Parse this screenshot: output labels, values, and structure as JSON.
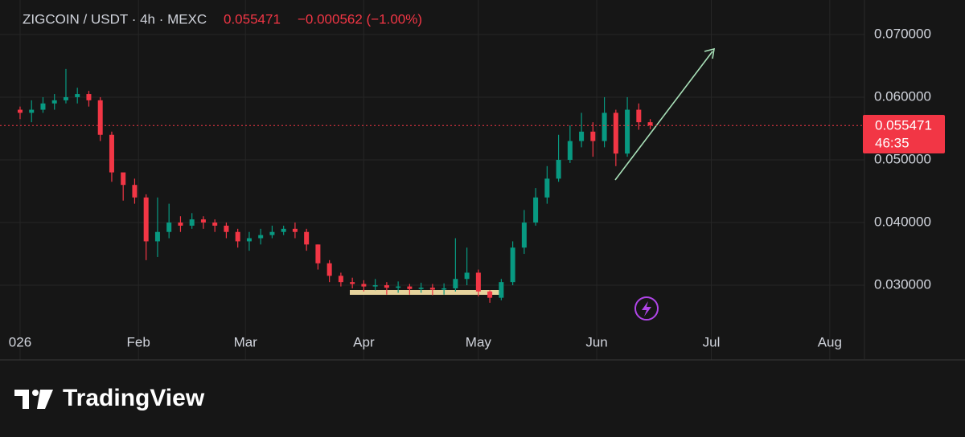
{
  "chart_data": {
    "type": "candlestick",
    "title": "ZIGCOIN / USDT · 4h · MEXC",
    "last_price": "0.055471",
    "change": "−0.000562 (−1.00%)",
    "price_label": "0.055471",
    "countdown": "46:35",
    "price_line": 0.055471,
    "brand": "TradingView",
    "up_color": "#089981",
    "down_color": "#f23645",
    "open": [
      0.058,
      0.0575,
      0.058,
      0.059,
      0.0595,
      0.06,
      0.0605,
      0.0595,
      0.054,
      0.048,
      0.046,
      0.044,
      0.037,
      0.0385,
      0.04,
      0.0395,
      0.0405,
      0.04,
      0.0395,
      0.0385,
      0.037,
      0.0375,
      0.038,
      0.0385,
      0.039,
      0.0385,
      0.0365,
      0.0335,
      0.0315,
      0.0305,
      0.0302,
      0.0298,
      0.03,
      0.0296,
      0.0298,
      0.0294,
      0.0296,
      0.0293,
      0.0295,
      0.031,
      0.032,
      0.029,
      0.028,
      0.0305,
      0.036,
      0.04,
      0.044,
      0.047,
      0.05,
      0.053,
      0.0545,
      0.053,
      0.0575,
      0.051,
      0.058,
      0.056
    ],
    "high": [
      0.0585,
      0.0595,
      0.06,
      0.0605,
      0.0645,
      0.0615,
      0.061,
      0.06,
      0.0545,
      0.0475,
      0.047,
      0.0445,
      0.044,
      0.043,
      0.041,
      0.0415,
      0.041,
      0.0405,
      0.04,
      0.039,
      0.0385,
      0.039,
      0.0395,
      0.0395,
      0.04,
      0.039,
      0.0365,
      0.034,
      0.032,
      0.0312,
      0.0308,
      0.031,
      0.0305,
      0.0306,
      0.0302,
      0.0304,
      0.0302,
      0.0303,
      0.0375,
      0.036,
      0.0325,
      0.0292,
      0.031,
      0.037,
      0.042,
      0.0455,
      0.049,
      0.054,
      0.0555,
      0.0575,
      0.056,
      0.06,
      0.058,
      0.06,
      0.059,
      0.0565
    ],
    "low": [
      0.0565,
      0.056,
      0.0575,
      0.058,
      0.059,
      0.059,
      0.0585,
      0.053,
      0.0465,
      0.0435,
      0.043,
      0.034,
      0.0345,
      0.0375,
      0.0385,
      0.039,
      0.039,
      0.0385,
      0.0375,
      0.036,
      0.0355,
      0.0365,
      0.0375,
      0.038,
      0.0375,
      0.0355,
      0.0325,
      0.0305,
      0.0298,
      0.0295,
      0.029,
      0.0292,
      0.0285,
      0.0288,
      0.0285,
      0.0288,
      0.0284,
      0.0285,
      0.029,
      0.03,
      0.0282,
      0.0272,
      0.0276,
      0.03,
      0.035,
      0.0395,
      0.043,
      0.0465,
      0.0495,
      0.052,
      0.0505,
      0.052,
      0.049,
      0.0505,
      0.0548,
      0.0549
    ],
    "close": [
      0.0575,
      0.058,
      0.059,
      0.0595,
      0.06,
      0.0605,
      0.0595,
      0.054,
      0.048,
      0.046,
      0.044,
      0.037,
      0.0385,
      0.04,
      0.0395,
      0.0405,
      0.04,
      0.0395,
      0.0385,
      0.037,
      0.0375,
      0.038,
      0.0385,
      0.039,
      0.0385,
      0.0365,
      0.0335,
      0.0315,
      0.0305,
      0.0302,
      0.0298,
      0.03,
      0.0296,
      0.0298,
      0.0294,
      0.0296,
      0.0293,
      0.0295,
      0.031,
      0.032,
      0.029,
      0.028,
      0.0305,
      0.036,
      0.04,
      0.044,
      0.047,
      0.05,
      0.053,
      0.0545,
      0.053,
      0.0575,
      0.051,
      0.058,
      0.056,
      0.0555
    ],
    "xlim": [
      -0.7,
      73.7
    ],
    "xticks": [
      {
        "value": 0,
        "label": "026"
      },
      {
        "value": 10.33,
        "label": "Feb"
      },
      {
        "value": 19.67,
        "label": "Mar"
      },
      {
        "value": 30,
        "label": "Apr"
      },
      {
        "value": 40,
        "label": "May"
      },
      {
        "value": 50.33,
        "label": "Jun"
      },
      {
        "value": 60.33,
        "label": "Jul"
      },
      {
        "value": 70.67,
        "label": "Aug"
      }
    ],
    "ylim": [
      0.0236,
      0.0755
    ],
    "yticks": [
      {
        "value": 0.03,
        "label": "0.030000"
      },
      {
        "value": 0.04,
        "label": "0.040000"
      },
      {
        "value": 0.05,
        "label": "0.050000"
      },
      {
        "value": 0.06,
        "label": "0.060000"
      },
      {
        "value": 0.07,
        "label": "0.070000"
      }
    ],
    "grid": true
  }
}
